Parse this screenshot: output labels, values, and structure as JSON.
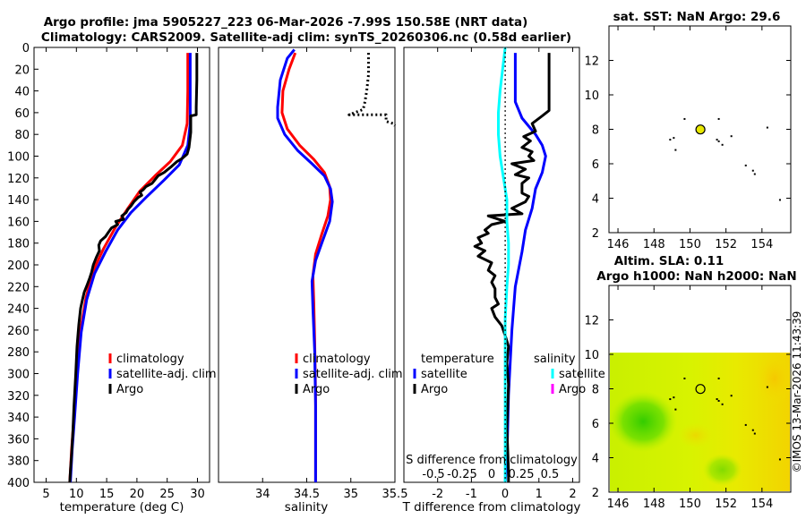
{
  "figure": {
    "title_line1": "Argo profile: jma 5905227_223 06-Mar-2026 -7.99S 150.58E (NRT data)",
    "title_line2": "Climatology: CARS2009. Satellite-adj clim: synTS_20260306.nc (0.58d earlier)",
    "credit": "©IMOS 13-Mar-2026 11:43:39"
  },
  "colors": {
    "climatology": "#ff0000",
    "satellite": "#0000ff",
    "argo": "#000000",
    "salinity_satellite": "#00ffff",
    "salinity_argo": "#ff00ff"
  },
  "chart_data": [
    {
      "id": "temperature",
      "type": "line",
      "xlabel": "temperature (deg C)",
      "ylabel": "",
      "xlim": [
        3,
        32
      ],
      "ylim": [
        400,
        0
      ],
      "xticks": [
        5,
        10,
        15,
        20,
        25,
        30
      ],
      "yticks": [
        0,
        20,
        40,
        60,
        80,
        100,
        120,
        140,
        160,
        180,
        200,
        220,
        240,
        260,
        280,
        300,
        320,
        340,
        360,
        380,
        400
      ],
      "legend": [
        "climatology",
        "satellite-adj. clim",
        "Argo"
      ],
      "series": [
        {
          "name": "climatology",
          "color": "#ff0000",
          "points": [
            [
              28.4,
              5
            ],
            [
              28.4,
              40
            ],
            [
              28.3,
              70
            ],
            [
              27.5,
              90
            ],
            [
              25.5,
              105
            ],
            [
              23,
              118
            ],
            [
              20.5,
              132
            ],
            [
              18.5,
              148
            ],
            [
              16.5,
              165
            ],
            [
              14.5,
              185
            ],
            [
              12.8,
              205
            ],
            [
              11.6,
              230
            ],
            [
              10.7,
              260
            ],
            [
              10.1,
              300
            ],
            [
              9.6,
              340
            ],
            [
              9.2,
              370
            ],
            [
              8.9,
              400
            ]
          ]
        },
        {
          "name": "satellite-adj. clim",
          "color": "#0000ff",
          "points": [
            [
              28.8,
              5
            ],
            [
              28.8,
              40
            ],
            [
              28.8,
              70
            ],
            [
              28.4,
              90
            ],
            [
              27,
              108
            ],
            [
              24.5,
              122
            ],
            [
              21.5,
              138
            ],
            [
              19,
              152
            ],
            [
              16.8,
              168
            ],
            [
              14.8,
              188
            ],
            [
              13,
              208
            ],
            [
              11.7,
              232
            ],
            [
              10.8,
              262
            ],
            [
              10.2,
              300
            ],
            [
              9.7,
              340
            ],
            [
              9.3,
              370
            ],
            [
              9,
              400
            ]
          ]
        },
        {
          "name": "Argo",
          "color": "#000000",
          "points": [
            [
              29.9,
              5
            ],
            [
              29.9,
              30
            ],
            [
              29.8,
              55
            ],
            [
              29.8,
              62
            ],
            [
              28.9,
              63
            ],
            [
              28.9,
              78
            ],
            [
              28.6,
              92
            ],
            [
              28.3,
              98
            ],
            [
              27.5,
              102
            ],
            [
              26.6,
              105
            ],
            [
              25.6,
              110
            ],
            [
              24.5,
              115
            ],
            [
              23.5,
              118
            ],
            [
              22.5,
              125
            ],
            [
              21.5,
              128
            ],
            [
              21,
              131
            ],
            [
              20.5,
              133
            ],
            [
              20.8,
              136
            ],
            [
              20.2,
              138
            ],
            [
              19.5,
              142
            ],
            [
              19,
              146
            ],
            [
              18.5,
              149
            ],
            [
              18.2,
              152
            ],
            [
              17.5,
              155
            ],
            [
              17.8,
              158
            ],
            [
              16.5,
              160
            ],
            [
              16.8,
              163
            ],
            [
              15.8,
              166
            ],
            [
              15.3,
              170
            ],
            [
              14.8,
              174
            ],
            [
              14,
              178
            ],
            [
              13.7,
              182
            ],
            [
              13.8,
              187
            ],
            [
              13.3,
              193
            ],
            [
              12.8,
              200
            ],
            [
              12.5,
              207
            ],
            [
              12.2,
              212
            ],
            [
              11.8,
              218
            ],
            [
              11.3,
              225
            ],
            [
              11,
              232
            ],
            [
              10.7,
              240
            ],
            [
              10.4,
              255
            ],
            [
              10.1,
              275
            ],
            [
              9.9,
              300
            ],
            [
              9.6,
              330
            ],
            [
              9.4,
              355
            ],
            [
              9.2,
              375
            ],
            [
              9,
              390
            ],
            [
              8.9,
              400
            ]
          ]
        }
      ]
    },
    {
      "id": "salinity",
      "type": "line",
      "xlabel": "salinity",
      "ylabel": "",
      "xlim": [
        33.5,
        35.5
      ],
      "ylim": [
        400,
        0
      ],
      "xticks": [
        34,
        34.5,
        35,
        35.5
      ],
      "legend": [
        "climatology",
        "satellite-adj. clim",
        "Argo"
      ],
      "series": [
        {
          "name": "climatology",
          "color": "#ff0000",
          "points": [
            [
              34.37,
              5
            ],
            [
              34.3,
              20
            ],
            [
              34.23,
              40
            ],
            [
              34.22,
              60
            ],
            [
              34.28,
              75
            ],
            [
              34.42,
              90
            ],
            [
              34.58,
              103
            ],
            [
              34.7,
              115
            ],
            [
              34.76,
              128
            ],
            [
              34.77,
              140
            ],
            [
              34.74,
              155
            ],
            [
              34.67,
              172
            ],
            [
              34.6,
              190
            ],
            [
              34.57,
              210
            ],
            [
              34.58,
              235
            ],
            [
              34.59,
              270
            ],
            [
              34.6,
              320
            ],
            [
              34.6,
              400
            ]
          ]
        },
        {
          "name": "satellite-adj. clim",
          "color": "#0000ff",
          "points": [
            [
              34.36,
              2
            ],
            [
              34.28,
              10
            ],
            [
              34.2,
              30
            ],
            [
              34.17,
              55
            ],
            [
              34.17,
              65
            ],
            [
              34.25,
              80
            ],
            [
              34.4,
              95
            ],
            [
              34.56,
              107
            ],
            [
              34.7,
              118
            ],
            [
              34.77,
              130
            ],
            [
              34.79,
              142
            ],
            [
              34.76,
              160
            ],
            [
              34.68,
              178
            ],
            [
              34.6,
              196
            ],
            [
              34.56,
              215
            ],
            [
              34.57,
              240
            ],
            [
              34.59,
              280
            ],
            [
              34.6,
              330
            ],
            [
              34.6,
              400
            ]
          ]
        },
        {
          "name": "Argo",
          "color": "#000000",
          "points": [
            [
              35.2,
              5
            ],
            [
              35.2,
              25
            ],
            [
              35.18,
              40
            ],
            [
              35.16,
              50
            ],
            [
              35.14,
              57
            ],
            [
              34.98,
              62
            ],
            [
              35.4,
              62
            ],
            [
              35.4,
              68
            ],
            [
              35.48,
              70
            ],
            [
              35.5,
              72
            ]
          ],
          "style": "dotted"
        }
      ]
    },
    {
      "id": "difference",
      "type": "line",
      "xlabel": "T difference from climatology",
      "top_xlabel": "S difference from climatology",
      "xlim": [
        -3,
        2.2
      ],
      "ylim": [
        400,
        0
      ],
      "xticks": [
        -2,
        -1,
        0,
        1,
        2
      ],
      "top_xticks": [
        "-0.5",
        "-0.25",
        "0",
        "0.25",
        "0.5"
      ],
      "legend_headers": [
        "temperature",
        "salinity"
      ],
      "legend": [
        "satellite",
        "Argo",
        "satellite",
        "Argo"
      ],
      "series": [
        {
          "name": "temperature satellite",
          "color": "#0000ff",
          "points": [
            [
              0.3,
              5
            ],
            [
              0.3,
              50
            ],
            [
              0.5,
              65
            ],
            [
              0.9,
              80
            ],
            [
              1.1,
              90
            ],
            [
              1.2,
              100
            ],
            [
              1.1,
              115
            ],
            [
              0.9,
              130
            ],
            [
              0.8,
              148
            ],
            [
              0.6,
              168
            ],
            [
              0.5,
              188
            ],
            [
              0.3,
              220
            ],
            [
              0.2,
              260
            ],
            [
              0.1,
              320
            ],
            [
              0.05,
              380
            ],
            [
              0,
              400
            ]
          ]
        },
        {
          "name": "temperature Argo",
          "color": "#000000",
          "points": [
            [
              1.3,
              5
            ],
            [
              1.3,
              40
            ],
            [
              1.3,
              58
            ],
            [
              1.1,
              63
            ],
            [
              0.8,
              70
            ],
            [
              0.9,
              77
            ],
            [
              0.55,
              82
            ],
            [
              0.75,
              86
            ],
            [
              0.5,
              92
            ],
            [
              0.8,
              96
            ],
            [
              0.7,
              100
            ],
            [
              0.85,
              104
            ],
            [
              0.2,
              107
            ],
            [
              0.6,
              112
            ],
            [
              0.3,
              117
            ],
            [
              0.7,
              120
            ],
            [
              0.5,
              125
            ],
            [
              0.5,
              134
            ],
            [
              0.7,
              137
            ],
            [
              0.6,
              142
            ],
            [
              0.2,
              148
            ],
            [
              0.5,
              153
            ],
            [
              -0.5,
              155
            ],
            [
              0,
              160
            ],
            [
              -0.4,
              163
            ],
            [
              -0.6,
              168
            ],
            [
              -0.5,
              171
            ],
            [
              -0.8,
              175
            ],
            [
              -0.7,
              180
            ],
            [
              -0.9,
              183
            ],
            [
              -0.6,
              187
            ],
            [
              -0.8,
              192
            ],
            [
              -0.4,
              198
            ],
            [
              -0.5,
              205
            ],
            [
              -0.3,
              210
            ],
            [
              -0.4,
              216
            ],
            [
              -0.3,
              222
            ],
            [
              -0.3,
              230
            ],
            [
              -0.2,
              236
            ],
            [
              -0.4,
              240
            ],
            [
              -0.3,
              248
            ],
            [
              -0.1,
              256
            ],
            [
              0,
              265
            ],
            [
              0.1,
              275
            ],
            [
              0.05,
              290
            ],
            [
              0.1,
              310
            ],
            [
              0.05,
              350
            ],
            [
              0.1,
              390
            ],
            [
              0.1,
              400
            ]
          ]
        },
        {
          "name": "salinity satellite",
          "color": "#00ffff",
          "points": [
            [
              0,
              0
            ],
            [
              -0.15,
              40
            ],
            [
              -0.2,
              60
            ],
            [
              -0.2,
              80
            ],
            [
              -0.15,
              100
            ],
            [
              -0.05,
              120
            ],
            [
              0.05,
              140
            ],
            [
              0.05,
              160
            ],
            [
              0.1,
              180
            ],
            [
              0.1,
              200
            ],
            [
              0.05,
              220
            ],
            [
              0,
              250
            ],
            [
              0,
              300
            ],
            [
              0,
              400
            ]
          ]
        },
        {
          "name": "reference",
          "color": "#000000",
          "points": [
            [
              0,
              0
            ],
            [
              0,
              400
            ]
          ],
          "style": "dotted"
        }
      ]
    },
    {
      "id": "sst_map",
      "type": "scatter",
      "title": "sat. SST: NaN Argo: 29.6",
      "xlim": [
        145.5,
        155.6
      ],
      "ylim": [
        2,
        14
      ],
      "xticks": [
        146,
        148,
        150,
        152,
        154
      ],
      "yticks": [
        2,
        4,
        6,
        8,
        10,
        12
      ],
      "float": {
        "x": 150.58,
        "y": 7.99
      },
      "points": [
        [
          149.7,
          8.6
        ],
        [
          148.9,
          7.4
        ],
        [
          149.1,
          7.5
        ],
        [
          149.2,
          6.8
        ],
        [
          151.6,
          8.6
        ],
        [
          151.5,
          7.4
        ],
        [
          151.6,
          7.3
        ],
        [
          151.8,
          7.1
        ],
        [
          152.3,
          7.6
        ],
        [
          153.1,
          5.9
        ],
        [
          153.5,
          5.6
        ],
        [
          153.6,
          5.4
        ],
        [
          154.3,
          8.1
        ],
        [
          155.0,
          3.9
        ]
      ]
    },
    {
      "id": "sla_map",
      "type": "heatmap",
      "title_line1": "Altim. SLA: 0.11",
      "title_line2": "Argo h1000: NaN h2000: NaN",
      "xlim": [
        145.5,
        155.6
      ],
      "ylim": [
        2,
        14
      ],
      "xticks": [
        146,
        148,
        150,
        152,
        154
      ],
      "yticks": [
        2,
        4,
        6,
        8,
        10,
        12
      ],
      "data_top": 10.1,
      "float": {
        "x": 150.58,
        "y": 7.99
      },
      "points": [
        [
          149.7,
          8.6
        ],
        [
          148.9,
          7.4
        ],
        [
          149.1,
          7.5
        ],
        [
          149.2,
          6.8
        ],
        [
          151.6,
          8.6
        ],
        [
          151.5,
          7.4
        ],
        [
          151.6,
          7.3
        ],
        [
          151.8,
          7.1
        ],
        [
          152.3,
          7.6
        ],
        [
          153.1,
          5.9
        ],
        [
          153.5,
          5.6
        ],
        [
          153.6,
          5.4
        ],
        [
          154.3,
          8.1
        ],
        [
          155.0,
          3.9
        ]
      ]
    }
  ]
}
